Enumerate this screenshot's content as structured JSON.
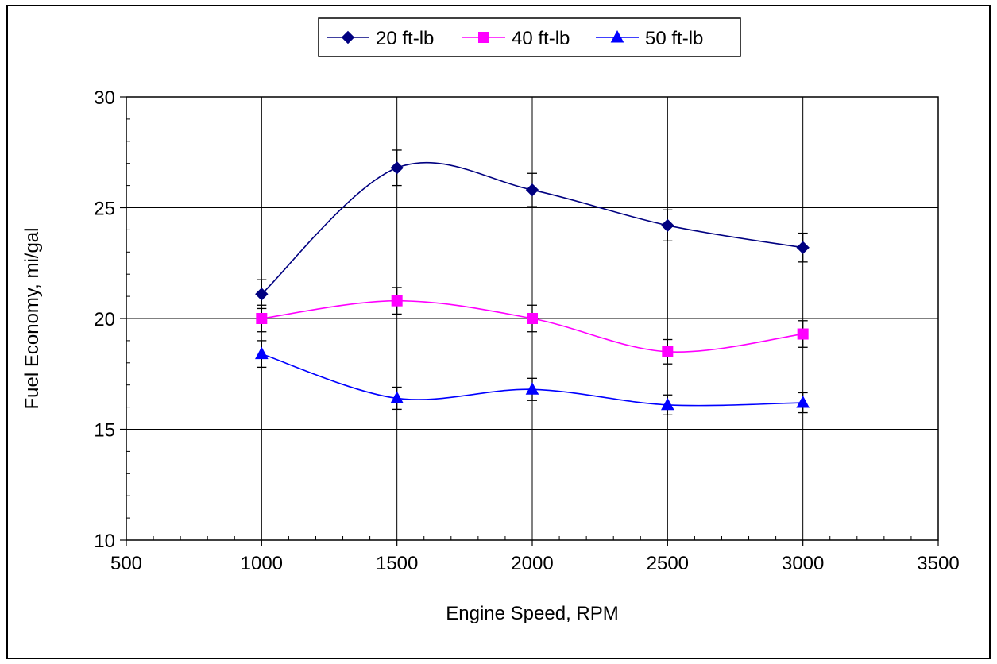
{
  "chart_data": {
    "type": "line",
    "title": "",
    "xlabel": "Engine Speed, RPM",
    "ylabel": "Fuel Economy, mi/gal",
    "xlim": [
      500,
      3500
    ],
    "ylim": [
      10,
      30
    ],
    "x_ticks": [
      500,
      1000,
      1500,
      2000,
      2500,
      3000,
      3500
    ],
    "y_ticks": [
      10,
      15,
      20,
      25,
      30
    ],
    "x_tick_labels": [
      "500",
      "1000",
      "1500",
      "2000",
      "2500",
      "3000",
      "3500"
    ],
    "y_tick_labels": [
      "10",
      "15",
      "20",
      "25",
      "30"
    ],
    "x_minor_step": 100,
    "y_minor_step": 1,
    "grid": true,
    "legend_position": "top-center",
    "smoothed": true,
    "x": [
      1000,
      1500,
      2000,
      2500,
      3000
    ],
    "series": [
      {
        "name": "20 ft-lb",
        "color": "#000080",
        "marker": "diamond",
        "values": [
          21.1,
          26.8,
          25.8,
          24.2,
          23.2
        ],
        "error": [
          0.65,
          0.8,
          0.75,
          0.7,
          0.65
        ]
      },
      {
        "name": "40 ft-lb",
        "color": "#ff00ff",
        "marker": "square",
        "values": [
          20.0,
          20.8,
          20.0,
          18.5,
          19.3
        ],
        "error": [
          0.6,
          0.6,
          0.6,
          0.55,
          0.6
        ]
      },
      {
        "name": "50 ft-lb",
        "color": "#0000ff",
        "marker": "triangle",
        "values": [
          18.4,
          16.4,
          16.8,
          16.1,
          16.2
        ],
        "error": [
          0.6,
          0.5,
          0.5,
          0.45,
          0.45
        ]
      }
    ]
  }
}
